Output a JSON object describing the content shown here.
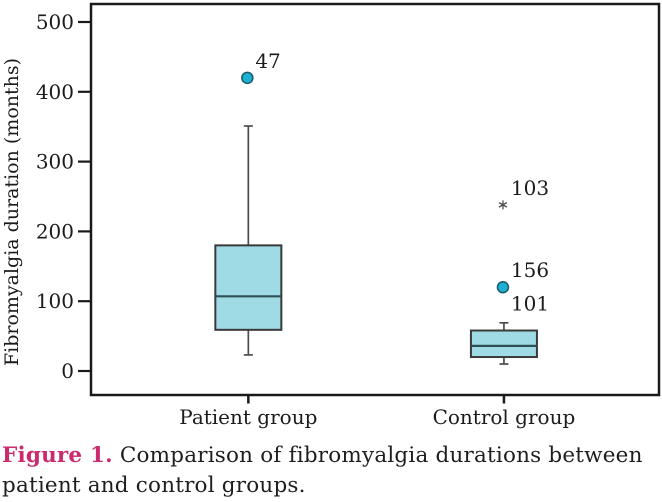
{
  "figure": {
    "caption_label": "Figure 1.",
    "caption_text": " Comparison of fibromyalgia durations between patient and control groups.",
    "caption_label_color": "#cc2a6e"
  },
  "chart_data": {
    "type": "boxplot",
    "ylabel": "Fibromyalgia duration (months)",
    "ylim": [
      0,
      500
    ],
    "yticks": [
      "0",
      "100",
      "200",
      "300",
      "400",
      "500"
    ],
    "ytick_values": [
      0,
      100,
      200,
      300,
      400,
      500
    ],
    "categories": [
      "Patient group",
      "Control group"
    ],
    "grid": "off",
    "legend": "none",
    "series": [
      {
        "name": "Patient group",
        "q1": 59,
        "median": 107,
        "q3": 180,
        "whisker_low": 23,
        "whisker_high": 351,
        "outliers": [
          {
            "value": 420,
            "label": "47",
            "marker": "circle"
          }
        ]
      },
      {
        "name": "Control group",
        "q1": 20,
        "median": 36,
        "q3": 58,
        "whisker_low": 10,
        "whisker_high": 69,
        "outliers": [
          {
            "value": 238,
            "label": "103",
            "marker": "asterisk"
          },
          {
            "value": 120,
            "label": "156",
            "marker": "circle"
          },
          {
            "value": 101,
            "label": "101",
            "marker": "none"
          }
        ]
      }
    ],
    "colors": {
      "box_fill": "#9fdbe4",
      "box_stroke": "#3a3a3a",
      "median_stroke": "#2f4f55",
      "whisker_stroke": "#4d4d4d",
      "outlier_fill": "#1cb1d2",
      "outlier_stroke": "#1c5a68",
      "asterisk_stroke": "#4f4f4f",
      "frame_stroke": "#1a1a1a",
      "text": "#1b1b1b"
    }
  }
}
